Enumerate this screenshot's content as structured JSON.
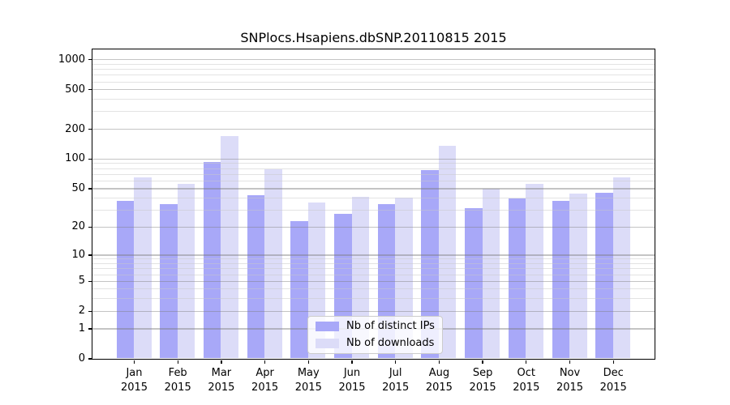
{
  "title": "SNPlocs.Hsapiens.dbSNP.20110815 2015",
  "chart_data": {
    "type": "bar",
    "title": "SNPlocs.Hsapiens.dbSNP.20110815 2015",
    "categories": [
      "Jan 2015",
      "Feb 2015",
      "Mar 2015",
      "Apr 2015",
      "May 2015",
      "Jun 2015",
      "Jul 2015",
      "Aug 2015",
      "Sep 2015",
      "Oct 2015",
      "Nov 2015",
      "Dec 2015"
    ],
    "month_labels": [
      "Jan",
      "Feb",
      "Mar",
      "Apr",
      "May",
      "Jun",
      "Jul",
      "Aug",
      "Sep",
      "Oct",
      "Nov",
      "Dec"
    ],
    "year_label": "2015",
    "series": [
      {
        "name": "Nb of distinct IPs",
        "color": "#a8a8f8",
        "values": [
          37,
          34,
          93,
          42,
          23,
          27,
          34,
          76,
          31,
          39,
          37,
          45
        ]
      },
      {
        "name": "Nb of downloads",
        "color": "#dcdcf8",
        "values": [
          65,
          55,
          170,
          78,
          36,
          41,
          40,
          136,
          49,
          55,
          44,
          65
        ]
      }
    ],
    "y_axis": {
      "scale": "log10(value+1)",
      "max": 1270,
      "ticks": [
        1000,
        500,
        200,
        100,
        50,
        20,
        10,
        5,
        2,
        1,
        0
      ],
      "minor_ticks": [
        3,
        4,
        6,
        7,
        8,
        9,
        30,
        40,
        60,
        70,
        80,
        90,
        300,
        400,
        600,
        700,
        800,
        900
      ]
    },
    "grid": true,
    "legend_position": "bottom-center"
  }
}
